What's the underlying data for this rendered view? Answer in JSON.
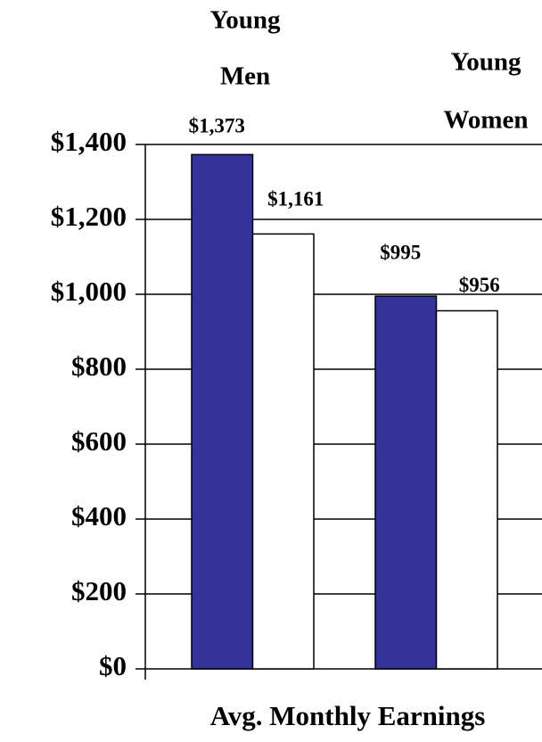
{
  "chart_data": {
    "type": "bar",
    "title": "Avg. Monthly Earnings",
    "categories": [
      [
        "Young",
        "Men"
      ],
      [
        "Young",
        "Women"
      ]
    ],
    "series": [
      {
        "color": "#333399",
        "values": [
          1373,
          995
        ],
        "value_labels": [
          "$1,373",
          "$995"
        ]
      },
      {
        "color": "#ffffff",
        "values": [
          1161,
          956
        ],
        "value_labels": [
          "$1,161",
          "$956"
        ]
      }
    ],
    "ylim": [
      0,
      1400
    ],
    "yticks": [
      {
        "value": 0,
        "label": "$0"
      },
      {
        "value": 200,
        "label": "$200"
      },
      {
        "value": 400,
        "label": "$400"
      },
      {
        "value": 600,
        "label": "$600"
      },
      {
        "value": 800,
        "label": "$800"
      },
      {
        "value": 1000,
        "label": "$1,000"
      },
      {
        "value": 1200,
        "label": "$1,200"
      },
      {
        "value": 1400,
        "label": "$1,400"
      }
    ],
    "grid": true
  }
}
